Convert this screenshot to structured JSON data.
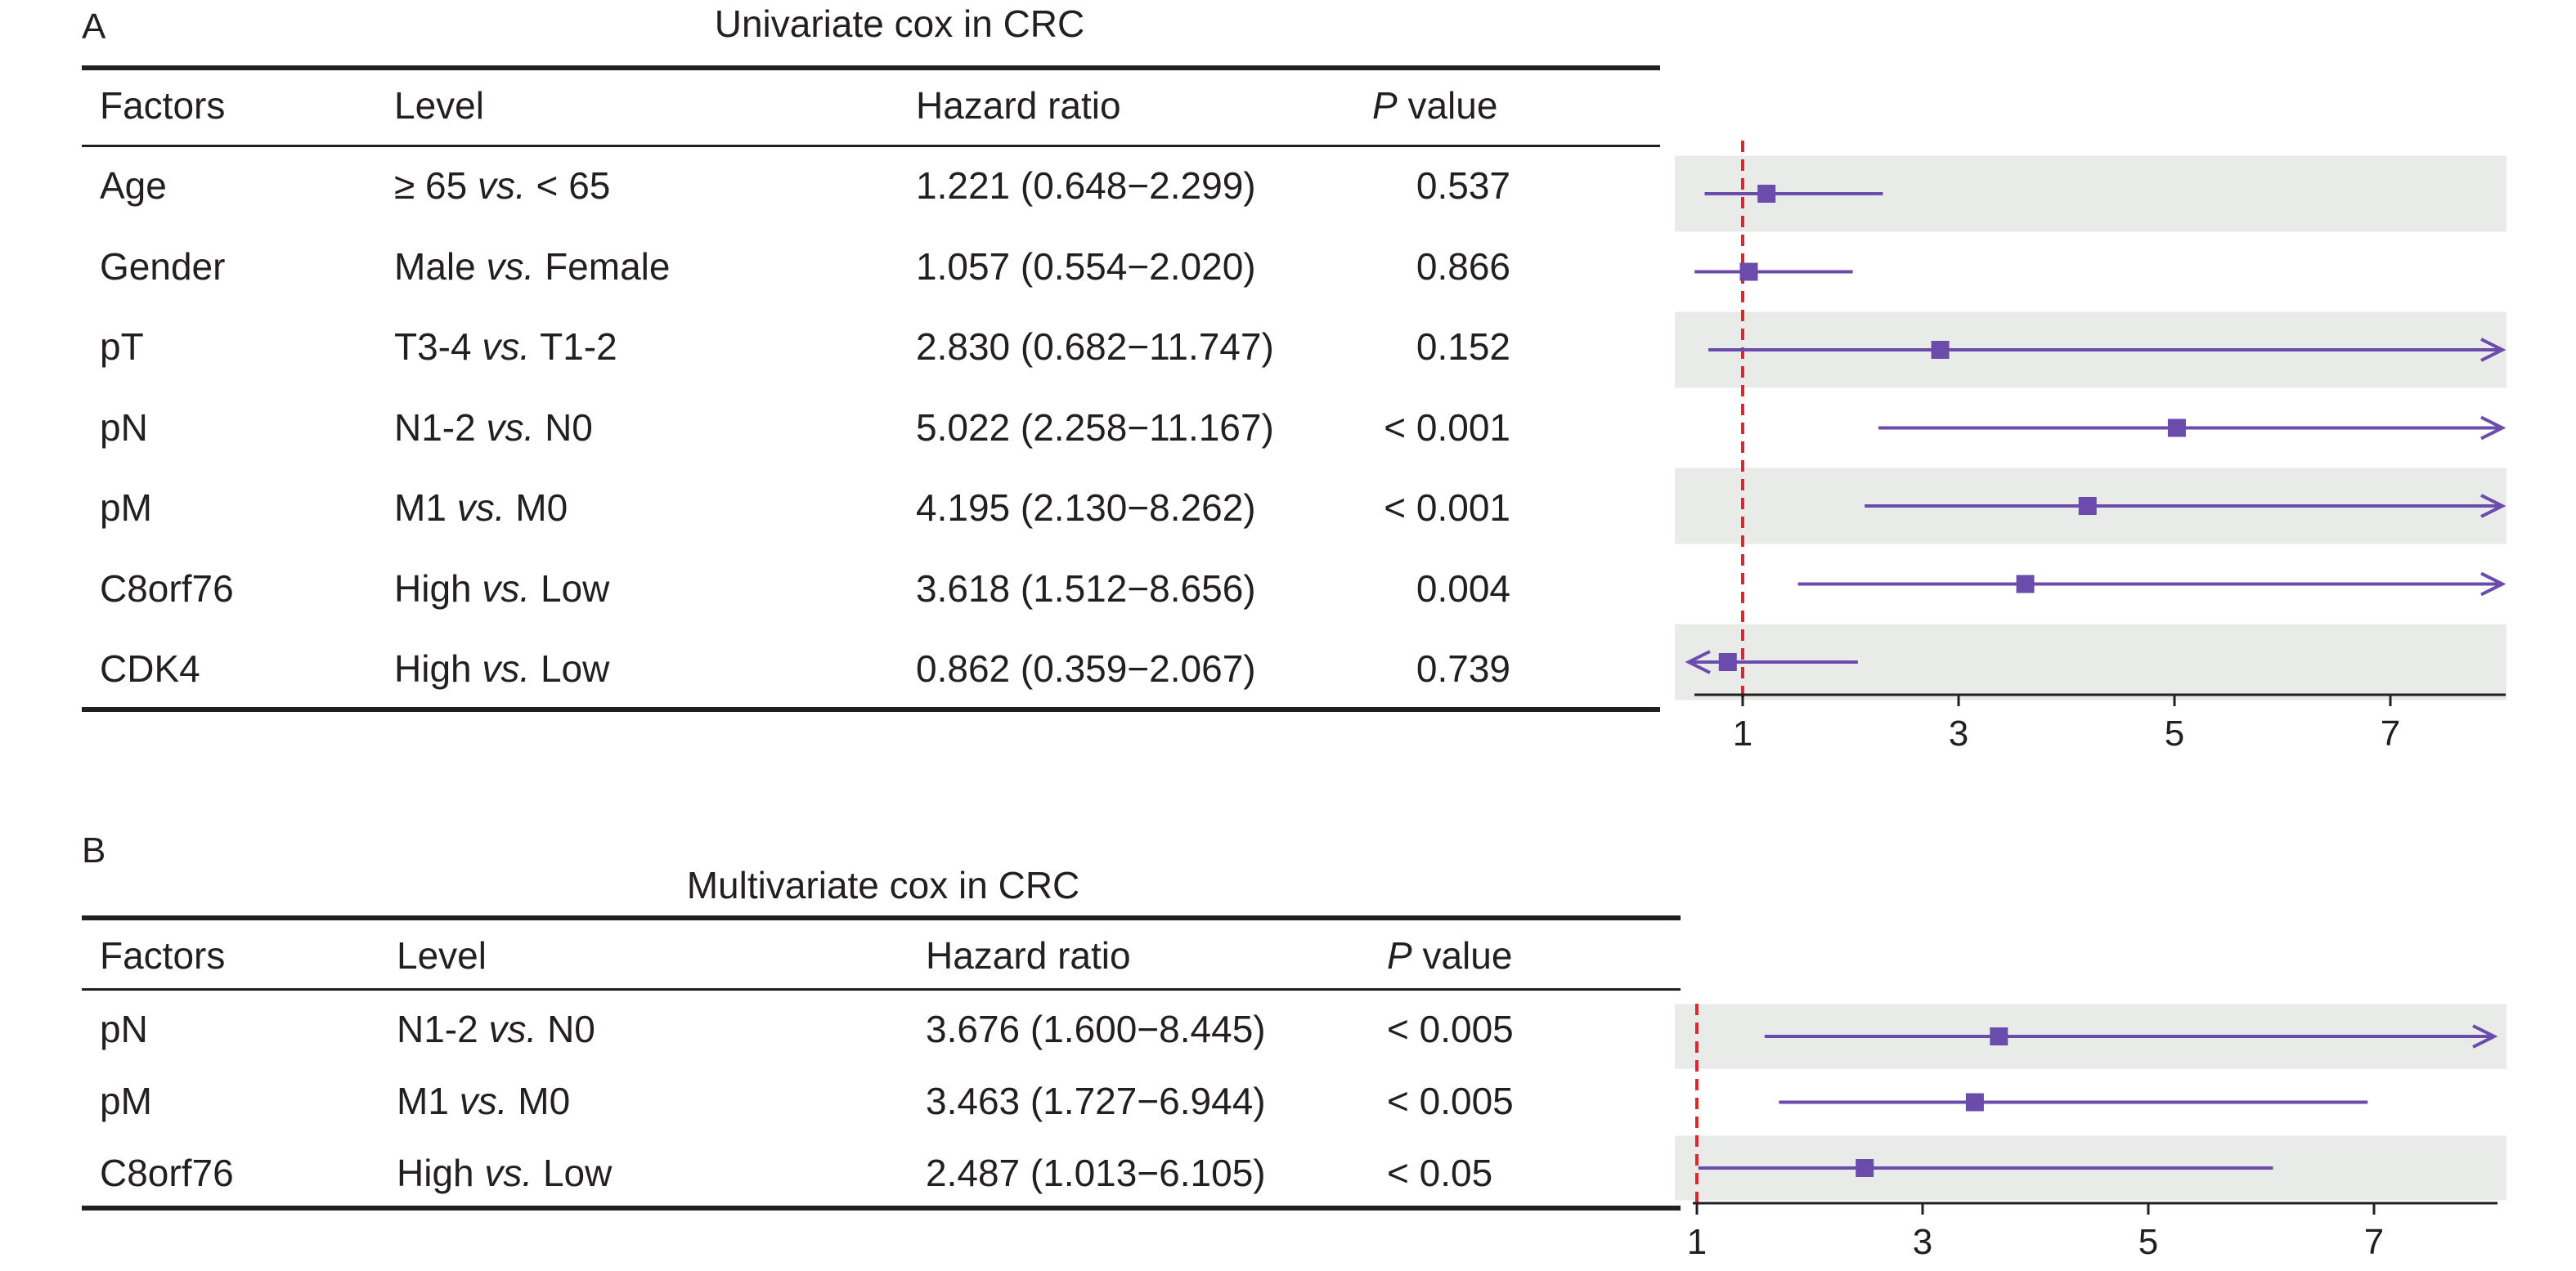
{
  "panels": [
    {
      "letter": "A",
      "title": "Univariate cox in CRC",
      "headers": {
        "factors": "Factors",
        "level": "Level",
        "hr": "Hazard ratio",
        "p_italic": "P",
        "p_rest": " value"
      },
      "rows": [
        {
          "factor": "Age",
          "level_a": "≥ 65",
          "vs": "vs.",
          "level_b": "< 65",
          "hr_text": "1.221 (0.648−2.299)",
          "p": "0.537"
        },
        {
          "factor": "Gender",
          "level_a": "Male",
          "vs": "vs.",
          "level_b": "Female",
          "hr_text": "1.057 (0.554−2.020)",
          "p": "0.866"
        },
        {
          "factor": "pT",
          "level_a": "T3-4",
          "vs": "vs.",
          "level_b": "T1-2",
          "hr_text": "2.830 (0.682−11.747)",
          "p": "0.152"
        },
        {
          "factor": "pN",
          "level_a": "N1-2",
          "vs": "vs.",
          "level_b": "N0",
          "hr_text": "5.022 (2.258−11.167)",
          "p": "< 0.001"
        },
        {
          "factor": "pM",
          "level_a": "M1",
          "vs": "vs.",
          "level_b": "M0",
          "hr_text": "4.195 (2.130−8.262)",
          "p": "< 0.001"
        },
        {
          "factor": "C8orf76",
          "level_a": "High",
          "vs": "vs.",
          "level_b": "Low",
          "hr_text": "3.618 (1.512−8.656)",
          "p": "0.004"
        },
        {
          "factor": "CDK4",
          "level_a": "High",
          "vs": "vs.",
          "level_b": "Low",
          "hr_text": "0.862 (0.359−2.067)",
          "p": "0.739"
        }
      ]
    },
    {
      "letter": "B",
      "title": "Multivariate cox in CRC",
      "headers": {
        "factors": "Factors",
        "level": "Level",
        "hr": "Hazard ratio",
        "p_italic": "P",
        "p_rest": " value"
      },
      "rows": [
        {
          "factor": "pN",
          "level_a": "N1-2",
          "vs": "vs.",
          "level_b": "N0",
          "hr_text": "3.676 (1.600−8.445)",
          "p": "< 0.005"
        },
        {
          "factor": "pM",
          "level_a": "M1",
          "vs": "vs.",
          "level_b": "M0",
          "hr_text": "3.463 (1.727−6.944)",
          "p": "< 0.005"
        },
        {
          "factor": "C8orf76",
          "level_a": "High",
          "vs": "vs.",
          "level_b": "Low",
          "hr_text": "2.487 (1.013−6.105)",
          "p": "< 0.05"
        }
      ]
    }
  ],
  "chart_data": [
    {
      "type": "forest",
      "title": "Univariate cox in CRC",
      "reference_line": 1,
      "xlim": [
        0.5,
        8.0
      ],
      "xticks": [
        1,
        3,
        5,
        7
      ],
      "series": [
        {
          "label": "Age",
          "hr": 1.221,
          "lower": 0.648,
          "upper": 2.299
        },
        {
          "label": "Gender",
          "hr": 1.057,
          "lower": 0.554,
          "upper": 2.02
        },
        {
          "label": "pT",
          "hr": 2.83,
          "lower": 0.682,
          "upper": 11.747
        },
        {
          "label": "pN",
          "hr": 5.022,
          "lower": 2.258,
          "upper": 11.167
        },
        {
          "label": "pM",
          "hr": 4.195,
          "lower": 2.13,
          "upper": 8.262
        },
        {
          "label": "C8orf76",
          "hr": 3.618,
          "lower": 1.512,
          "upper": 8.656
        },
        {
          "label": "CDK4",
          "hr": 0.862,
          "lower": 0.359,
          "upper": 2.067
        }
      ]
    },
    {
      "type": "forest",
      "title": "Multivariate cox in CRC",
      "reference_line": 1,
      "xlim": [
        1.0,
        8.0
      ],
      "xticks": [
        1,
        3,
        5,
        7
      ],
      "series": [
        {
          "label": "pN",
          "hr": 3.676,
          "lower": 1.6,
          "upper": 8.445
        },
        {
          "label": "pM",
          "hr": 3.463,
          "lower": 1.727,
          "upper": 6.944
        },
        {
          "label": "C8orf76",
          "hr": 2.487,
          "lower": 1.013,
          "upper": 6.105
        }
      ]
    }
  ],
  "colors": {
    "marker": "#6b4bab",
    "reference": "#e0252b",
    "band": "#e8ebe8",
    "text": "#231f20"
  }
}
